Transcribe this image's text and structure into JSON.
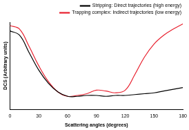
{
  "chart_data": {
    "type": "line",
    "x_label": "Scattering angles (degrees)",
    "y_label": "DCS (Arbitrary units)",
    "x": [
      0,
      10,
      20,
      30,
      40,
      50,
      60,
      70,
      80,
      90,
      100,
      110,
      120,
      130,
      140,
      150,
      160,
      170,
      180
    ],
    "series": [
      {
        "name": "Stripping: Direct trajectories (high energy)",
        "color": "#000000",
        "values": [
          90,
          85,
          65,
          45,
          30,
          20,
          15,
          15,
          16,
          16,
          15,
          16,
          16,
          17,
          18,
          19,
          21,
          23,
          25
        ]
      },
      {
        "name": "Trapping complex: Indirect trajectories (low energy)",
        "color": "#e8202e",
        "values": [
          96,
          92,
          72,
          50,
          32,
          20,
          15,
          16,
          18,
          22,
          21,
          19,
          22,
          40,
          60,
          75,
          85,
          92,
          98
        ]
      }
    ],
    "xlim": [
      0,
      180
    ],
    "xticks": [
      0,
      30,
      60,
      90,
      120,
      150,
      180
    ],
    "ylim": [
      0,
      100
    ],
    "grid": false,
    "legend": "top",
    "tick_labels": "x"
  }
}
